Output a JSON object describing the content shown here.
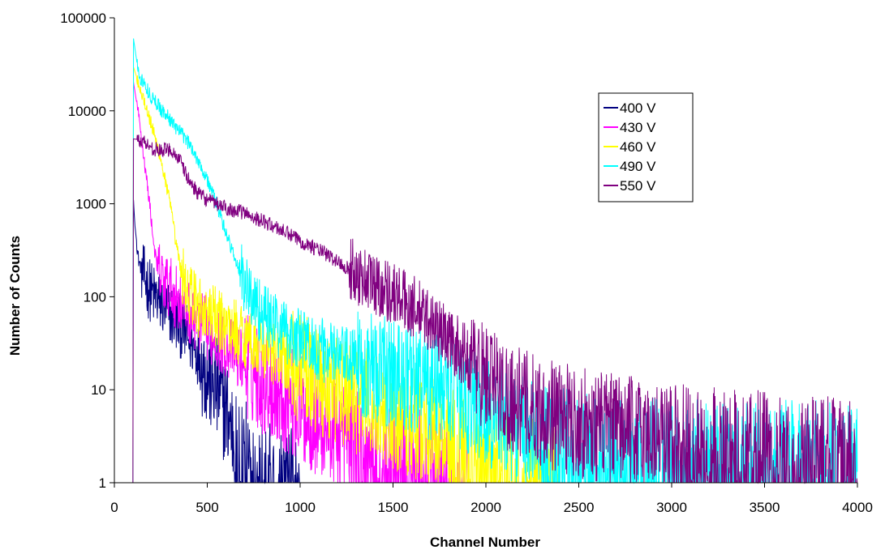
{
  "chart_data": {
    "type": "line",
    "xlabel": "Channel Number",
    "ylabel": "Number of Counts",
    "xlim": [
      0,
      4000
    ],
    "ylim": [
      1,
      100000
    ],
    "yscale": "log",
    "x_ticks": [
      0,
      500,
      1000,
      1500,
      2000,
      2500,
      3000,
      3500,
      4000
    ],
    "y_ticks": [
      1,
      10,
      100,
      1000,
      10000,
      100000
    ],
    "x_tick_labels": [
      "0",
      "500",
      "1000",
      "1500",
      "2000",
      "2500",
      "3000",
      "3500",
      "4000"
    ],
    "y_tick_labels": [
      "1",
      "10",
      "100",
      "1000",
      "10000",
      "100000"
    ],
    "grid": false,
    "legend_position": "top-right",
    "series": [
      {
        "name": "400 V",
        "color": "#000080",
        "points": [
          [
            100,
            1
          ],
          [
            102,
            1200
          ],
          [
            110,
            600
          ],
          [
            130,
            250
          ],
          [
            160,
            160
          ],
          [
            200,
            110
          ],
          [
            250,
            85
          ],
          [
            300,
            65
          ],
          [
            350,
            50
          ],
          [
            400,
            35
          ],
          [
            450,
            25
          ],
          [
            500,
            15
          ],
          [
            550,
            10
          ],
          [
            600,
            6
          ],
          [
            650,
            3
          ],
          [
            700,
            2
          ],
          [
            750,
            1.5
          ],
          [
            800,
            1.2
          ],
          [
            900,
            1
          ],
          [
            1000,
            1
          ]
        ]
      },
      {
        "name": "430 V",
        "color": "#ff00ff",
        "points": [
          [
            100,
            1
          ],
          [
            102,
            21000
          ],
          [
            130,
            9000
          ],
          [
            160,
            3000
          ],
          [
            190,
            1000
          ],
          [
            210,
            400
          ],
          [
            230,
            200
          ],
          [
            260,
            150
          ],
          [
            300,
            120
          ],
          [
            350,
            90
          ],
          [
            400,
            70
          ],
          [
            500,
            45
          ],
          [
            600,
            30
          ],
          [
            700,
            20
          ],
          [
            800,
            13
          ],
          [
            900,
            9
          ],
          [
            1000,
            6
          ],
          [
            1100,
            4.5
          ],
          [
            1200,
            3.5
          ],
          [
            1300,
            3
          ],
          [
            1400,
            2.5
          ],
          [
            1500,
            2
          ],
          [
            1600,
            1.7
          ],
          [
            1700,
            1.4
          ],
          [
            1800,
            1.2
          ],
          [
            1900,
            1
          ]
        ]
      },
      {
        "name": "460 V",
        "color": "#ffff00",
        "points": [
          [
            100,
            1
          ],
          [
            102,
            30000
          ],
          [
            150,
            15000
          ],
          [
            200,
            7000
          ],
          [
            250,
            3000
          ],
          [
            300,
            1000
          ],
          [
            330,
            400
          ],
          [
            360,
            180
          ],
          [
            400,
            110
          ],
          [
            450,
            80
          ],
          [
            500,
            65
          ],
          [
            600,
            50
          ],
          [
            700,
            38
          ],
          [
            800,
            30
          ],
          [
            900,
            22
          ],
          [
            1000,
            17
          ],
          [
            1100,
            13
          ],
          [
            1200,
            10
          ],
          [
            1300,
            8
          ],
          [
            1400,
            6.5
          ],
          [
            1500,
            5.5
          ],
          [
            1600,
            4.5
          ],
          [
            1700,
            3.5
          ],
          [
            1800,
            3
          ],
          [
            1900,
            2.5
          ],
          [
            2000,
            2
          ],
          [
            2100,
            1.7
          ],
          [
            2200,
            1.4
          ],
          [
            2300,
            1.2
          ],
          [
            2400,
            1
          ]
        ]
      },
      {
        "name": "490 V",
        "color": "#00ffff",
        "points": [
          [
            100,
            1
          ],
          [
            102,
            62000
          ],
          [
            130,
            25000
          ],
          [
            200,
            14000
          ],
          [
            300,
            8000
          ],
          [
            400,
            4500
          ],
          [
            450,
            3000
          ],
          [
            500,
            1800
          ],
          [
            550,
            1000
          ],
          [
            600,
            500
          ],
          [
            650,
            250
          ],
          [
            700,
            140
          ],
          [
            750,
            90
          ],
          [
            800,
            65
          ],
          [
            900,
            45
          ],
          [
            1000,
            35
          ],
          [
            1100,
            28
          ],
          [
            1200,
            23
          ],
          [
            1300,
            20
          ],
          [
            1400,
            17
          ],
          [
            1500,
            15
          ],
          [
            1600,
            13
          ],
          [
            1700,
            11
          ],
          [
            1800,
            10
          ],
          [
            1900,
            8
          ],
          [
            2000,
            6
          ],
          [
            2100,
            4.5
          ],
          [
            2200,
            3.5
          ],
          [
            2300,
            3
          ],
          [
            2500,
            2.5
          ],
          [
            2700,
            2.2
          ],
          [
            3000,
            2
          ],
          [
            3300,
            2
          ],
          [
            3600,
            2
          ],
          [
            4000,
            2
          ]
        ]
      },
      {
        "name": "550 V",
        "color": "#800080",
        "points": [
          [
            100,
            1
          ],
          [
            102,
            5000
          ],
          [
            150,
            4800
          ],
          [
            200,
            4000
          ],
          [
            250,
            3700
          ],
          [
            300,
            3900
          ],
          [
            350,
            3000
          ],
          [
            400,
            1800
          ],
          [
            450,
            1300
          ],
          [
            500,
            1100
          ],
          [
            600,
            900
          ],
          [
            700,
            800
          ],
          [
            800,
            650
          ],
          [
            900,
            520
          ],
          [
            1000,
            400
          ],
          [
            1100,
            320
          ],
          [
            1200,
            240
          ],
          [
            1300,
            180
          ],
          [
            1400,
            140
          ],
          [
            1500,
            110
          ],
          [
            1600,
            80
          ],
          [
            1700,
            55
          ],
          [
            1800,
            35
          ],
          [
            1900,
            22
          ],
          [
            2000,
            14
          ],
          [
            2100,
            9
          ],
          [
            2200,
            7
          ],
          [
            2400,
            5
          ],
          [
            2600,
            4
          ],
          [
            2800,
            3.5
          ],
          [
            3000,
            3
          ],
          [
            3500,
            2.5
          ],
          [
            4000,
            2
          ]
        ]
      }
    ]
  }
}
